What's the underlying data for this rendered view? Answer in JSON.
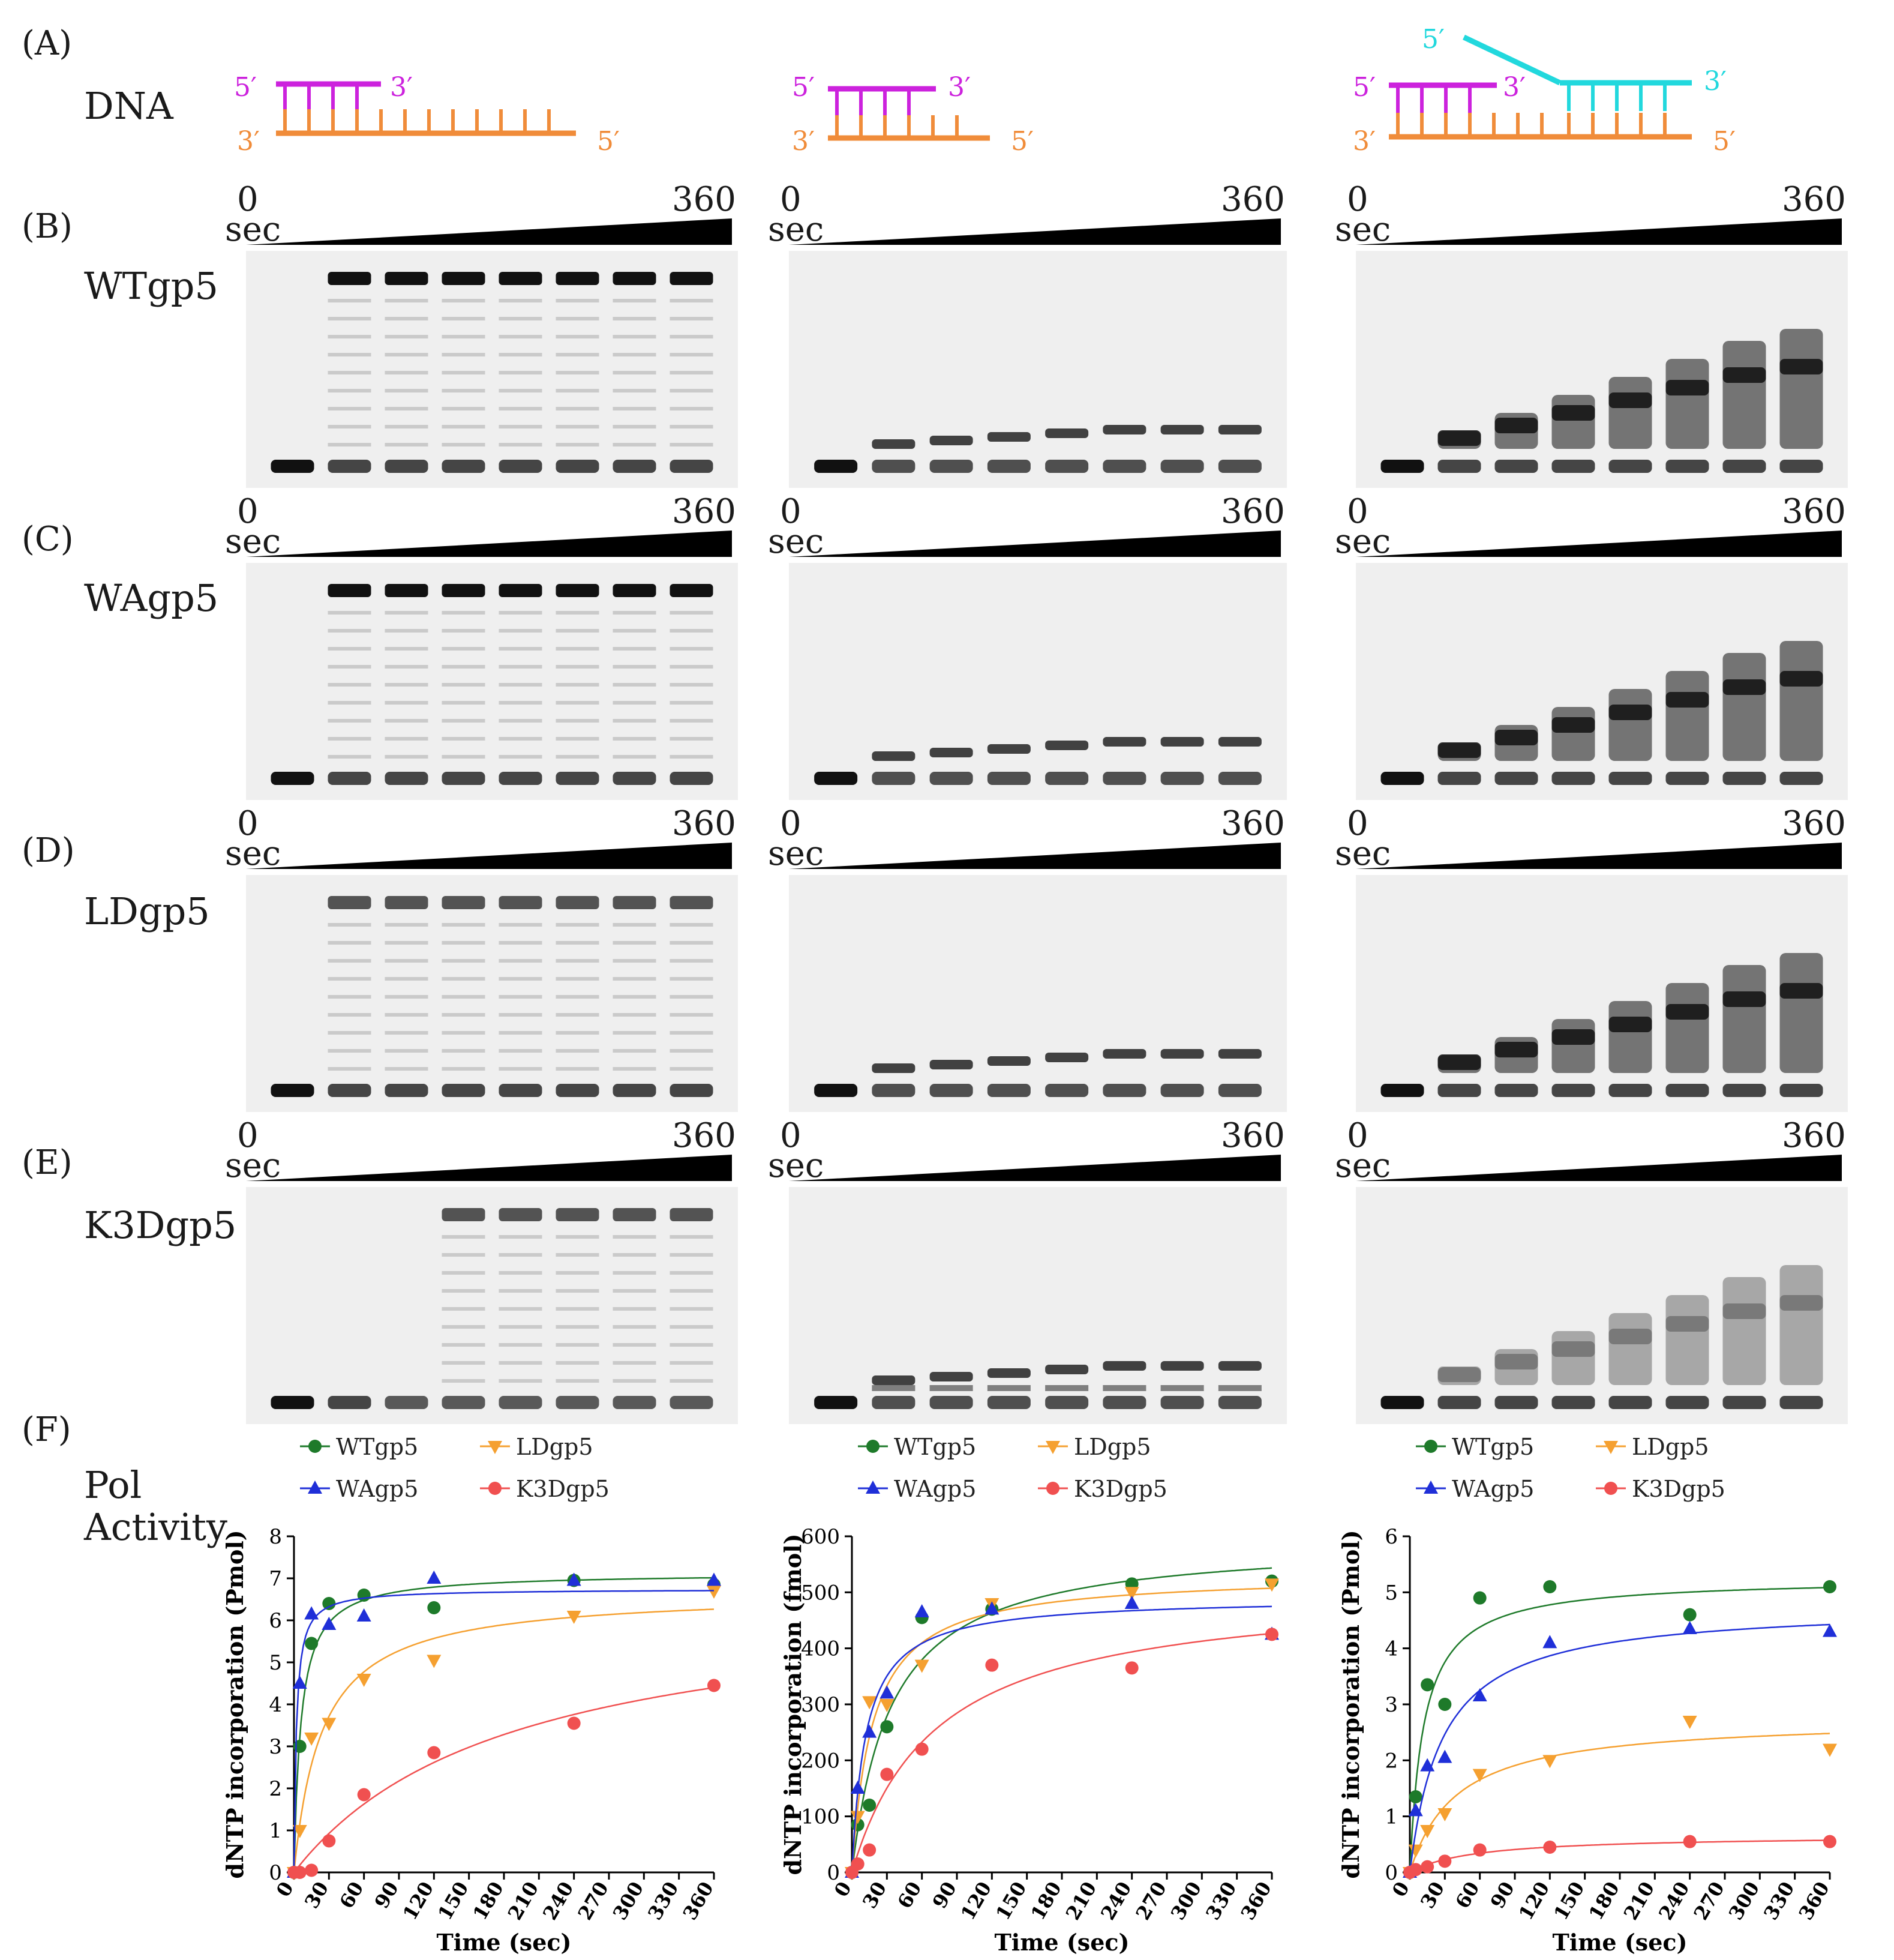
{
  "panels": {
    "A": "(A)",
    "B": "(B)",
    "C": "(C)",
    "D": "(D)",
    "E": "(E)",
    "F": "(F)"
  },
  "dna_label": "DNA",
  "dna": {
    "p5": "5′",
    "p3": "3′"
  },
  "time_axis": {
    "start": "0",
    "unit": "sec",
    "end": "360"
  },
  "rows": [
    {
      "id": "B",
      "label": "WTgp5"
    },
    {
      "id": "C",
      "label": "WAgp5"
    },
    {
      "id": "D",
      "label": "LDgp5"
    },
    {
      "id": "E",
      "label": "K3Dgp5"
    }
  ],
  "pol_activity_label": [
    "Pol",
    "Activity"
  ],
  "colors": {
    "magenta": "#cc22dd",
    "orange": "#f08c3a",
    "cyan": "#22d8dd",
    "wt": "#1e7a2a",
    "ld": "#f5a030",
    "wa": "#1f2fd8",
    "k3d": "#f05050"
  },
  "legend": [
    "WTgp5",
    "LDgp5",
    "WAgp5",
    "K3Dgp5"
  ],
  "chart_data": [
    {
      "type": "scatter",
      "xlabel": "Time (sec)",
      "ylabel": "dNTP incorporation (Pmol)",
      "xlim": [
        0,
        360
      ],
      "ylim": [
        0,
        8
      ],
      "xticks": [
        0,
        30,
        60,
        90,
        120,
        150,
        180,
        210,
        240,
        270,
        300,
        330,
        360
      ],
      "yticks": [
        0,
        1,
        2,
        3,
        4,
        5,
        6,
        7,
        8
      ],
      "x": [
        0,
        5,
        15,
        30,
        60,
        120,
        240,
        360
      ],
      "series": [
        {
          "name": "WTgp5",
          "values": [
            0,
            3.0,
            5.45,
            6.4,
            6.6,
            6.3,
            6.95,
            6.85
          ]
        },
        {
          "name": "LDgp5",
          "values": [
            0,
            1.0,
            3.2,
            3.55,
            4.6,
            5.05,
            6.1,
            6.7
          ]
        },
        {
          "name": "WAgp5",
          "values": [
            0,
            4.5,
            6.15,
            5.9,
            6.1,
            7.0,
            6.95,
            6.95
          ]
        },
        {
          "name": "K3Dgp5",
          "values": [
            0,
            0,
            0.05,
            0.75,
            1.85,
            2.85,
            3.55,
            4.45
          ]
        }
      ]
    },
    {
      "type": "scatter",
      "xlabel": "Time (sec)",
      "ylabel": "dNTP incorporation (fmol)",
      "xlim": [
        0,
        360
      ],
      "ylim": [
        0,
        600
      ],
      "xticks": [
        0,
        30,
        60,
        90,
        120,
        150,
        180,
        210,
        240,
        270,
        300,
        330,
        360
      ],
      "yticks": [
        0,
        100,
        200,
        300,
        400,
        500,
        600
      ],
      "x": [
        0,
        5,
        15,
        30,
        60,
        120,
        240,
        360
      ],
      "series": [
        {
          "name": "WTgp5",
          "values": [
            0,
            85,
            120,
            260,
            455,
            470,
            515,
            520
          ]
        },
        {
          "name": "LDgp5",
          "values": [
            0,
            100,
            305,
            300,
            370,
            480,
            500,
            515
          ]
        },
        {
          "name": "WAgp5",
          "values": [
            0,
            150,
            250,
            320,
            465,
            470,
            480,
            425
          ]
        },
        {
          "name": "K3Dgp5",
          "values": [
            0,
            15,
            40,
            175,
            220,
            370,
            365,
            425
          ]
        }
      ]
    },
    {
      "type": "scatter",
      "xlabel": "Time (sec)",
      "ylabel": "dNTP incorporation (Pmol)",
      "xlim": [
        0,
        360
      ],
      "ylim": [
        0,
        6
      ],
      "xticks": [
        0,
        30,
        60,
        90,
        120,
        150,
        180,
        210,
        240,
        270,
        300,
        330,
        360
      ],
      "yticks": [
        0,
        1,
        2,
        3,
        4,
        5,
        6
      ],
      "x": [
        0,
        5,
        15,
        30,
        60,
        120,
        240,
        360
      ],
      "series": [
        {
          "name": "WTgp5",
          "values": [
            0,
            1.35,
            3.35,
            3.0,
            4.9,
            5.1,
            4.6,
            5.1
          ]
        },
        {
          "name": "LDgp5",
          "values": [
            0,
            0.4,
            0.75,
            1.05,
            1.75,
            2.0,
            2.7,
            2.2
          ]
        },
        {
          "name": "WAgp5",
          "values": [
            0,
            1.1,
            1.9,
            2.05,
            3.15,
            4.1,
            4.35,
            4.3
          ]
        },
        {
          "name": "K3Dgp5",
          "values": [
            0,
            0.05,
            0.1,
            0.2,
            0.4,
            0.45,
            0.55,
            0.55
          ]
        }
      ]
    }
  ]
}
